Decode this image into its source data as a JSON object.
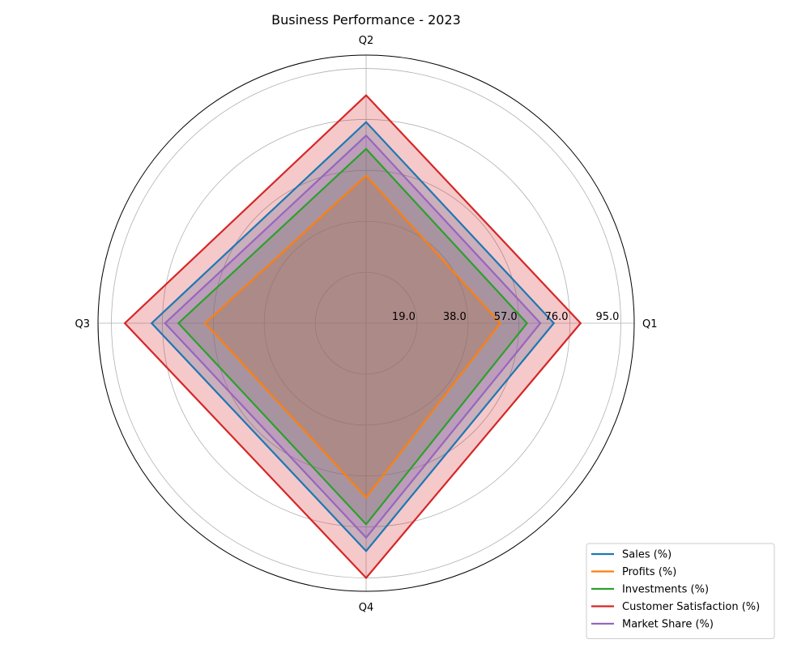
{
  "chart_data": {
    "type": "radar",
    "title": "Business Performance - 2023",
    "categories": [
      "Q1",
      "Q2",
      "Q3",
      "Q4"
    ],
    "r_ticks": [
      19.0,
      38.0,
      57.0,
      76.0,
      95.0
    ],
    "r_tick_labels": [
      "19.0",
      "38.0",
      "57.0",
      "76.0",
      "95.0"
    ],
    "r_max": 100,
    "grid": true,
    "legend_position": "bottom-right",
    "series": [
      {
        "name": "Sales (%)",
        "color": "#1f77b4",
        "values": [
          70,
          75,
          80,
          85
        ]
      },
      {
        "name": "Profits (%)",
        "color": "#ff7f0e",
        "values": [
          50,
          55,
          60,
          65
        ]
      },
      {
        "name": "Investments (%)",
        "color": "#2ca02c",
        "values": [
          60,
          65,
          70,
          75
        ]
      },
      {
        "name": "Customer Satisfaction (%)",
        "color": "#d62728",
        "values": [
          80,
          85,
          90,
          95
        ]
      },
      {
        "name": "Market Share (%)",
        "color": "#9467bd",
        "values": [
          65,
          70,
          75,
          80
        ]
      }
    ]
  }
}
